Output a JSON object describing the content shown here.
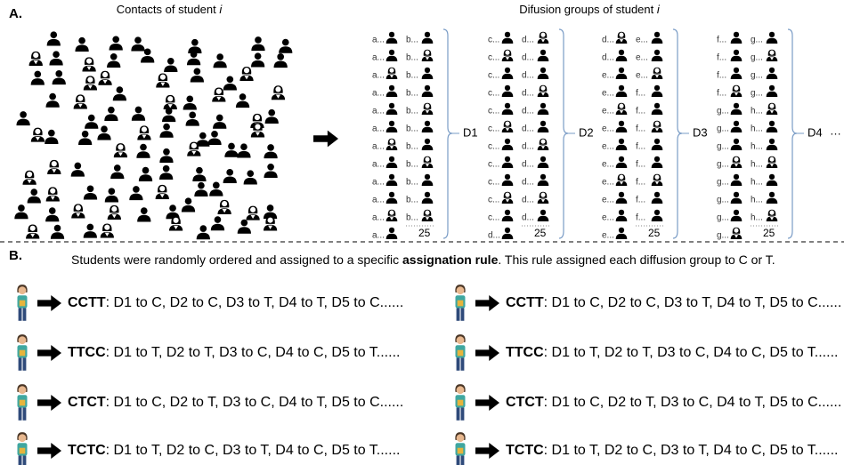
{
  "panel_a": {
    "label": "A.",
    "contacts_title": "Contacts of student ",
    "contacts_var": "i",
    "groups_title": "Difusion groups of student ",
    "groups_var": "i",
    "groups": [
      {
        "name": "D1",
        "count": 25,
        "col1": [
          "a...",
          "a...",
          "a...",
          "a...",
          "a...",
          "a...",
          "a...",
          "a...",
          "a...",
          "a...",
          "a...",
          "a..."
        ],
        "col2": [
          "b...",
          "b...",
          "b...",
          "b...",
          "b...",
          "b...",
          "b...",
          "b...",
          "b...",
          "b...",
          "b..."
        ]
      },
      {
        "name": "D2",
        "count": 25,
        "col1": [
          "c...",
          "c...",
          "c...",
          "c...",
          "c...",
          "c...",
          "c...",
          "c...",
          "c...",
          "c...",
          "c...",
          "d..."
        ],
        "col2": [
          "d...",
          "d...",
          "d...",
          "d...",
          "d...",
          "d...",
          "d...",
          "d...",
          "d...",
          "d...",
          "d..."
        ]
      },
      {
        "name": "D3",
        "count": 25,
        "col1": [
          "d...",
          "d...",
          "e...",
          "e...",
          "e...",
          "e...",
          "e...",
          "e...",
          "e...",
          "e...",
          "e...",
          "e..."
        ],
        "col2": [
          "e...",
          "e...",
          "e...",
          "f...",
          "f...",
          "f...",
          "f...",
          "f...",
          "f...",
          "f...",
          "f..."
        ]
      },
      {
        "name": "D4",
        "count": 25,
        "col1": [
          "f...",
          "f...",
          "f...",
          "f...",
          "g...",
          "g...",
          "g...",
          "g...",
          "g...",
          "g...",
          "g...",
          "g..."
        ],
        "col2": [
          "g...",
          "g...",
          "g...",
          "g...",
          "h...",
          "h...",
          "h...",
          "h...",
          "h...",
          "h...",
          "h..."
        ]
      }
    ],
    "more": "…"
  },
  "panel_b": {
    "label": "B.",
    "intro": "Students were randomly ordered and assigned to a specific ",
    "intro_bold": "assignation rule",
    "intro_end": ". This rule assigned each diffusion group to C or T.",
    "rules": [
      {
        "code": "CCTT",
        "text": ": D1 to C, D2 to C, D3 to T, D4 to T, D5 to C......"
      },
      {
        "code": "CCTT",
        "text": ": D1 to C, D2 to C, D3 to T, D4 to T, D5 to C......"
      },
      {
        "code": "TTCC",
        "text": ": D1 to T, D2 to T, D3 to C, D4 to C, D5 to T......"
      },
      {
        "code": "TTCC",
        "text": ": D1 to T, D2 to T, D3 to C, D4 to C, D5 to T......"
      },
      {
        "code": "CTCT",
        "text": ": D1 to C, D2 to T, D3 to C, D4 to T, D5 to C......"
      },
      {
        "code": "CTCT",
        "text": ": D1 to C, D2 to T, D3 to C, D4 to T, D5 to C......"
      },
      {
        "code": "TCTC",
        "text": ": D1 to T, D2 to C, D3 to T, D4 to C, D5 to T......"
      },
      {
        "code": "TCTC",
        "text": ": D1 to T, D2 to C, D3 to T, D4 to C, D5 to T......"
      }
    ]
  }
}
